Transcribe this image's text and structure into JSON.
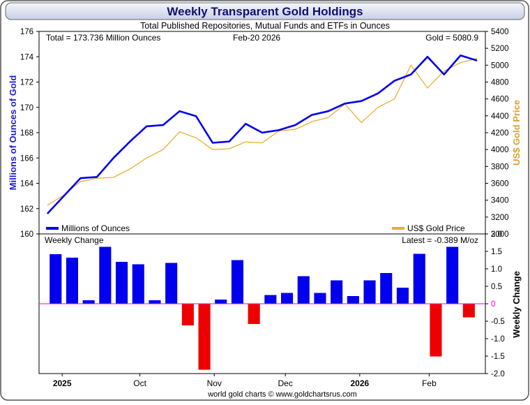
{
  "chart_data": [
    {
      "type": "line",
      "title": "Weekly Transparent Gold Holdings",
      "subtitle": "Total Published Repositories, Mutual Funds and ETFs in Ounces",
      "total_label": "Total = 173.736 Million Ounces",
      "date_label": "Feb-20  2026",
      "gold_label": "Gold = 5080.9",
      "ylabel": "Millions of Ounces of Gold",
      "y2label": "US$ Gold Price",
      "ylim": [
        160,
        176
      ],
      "y2lim": [
        3000,
        5400
      ],
      "yticks": [
        "160",
        "162",
        "164",
        "166",
        "168",
        "170",
        "172",
        "174",
        "176"
      ],
      "y2ticks": [
        "3000",
        "3200",
        "3400",
        "3600",
        "3800",
        "4000",
        "4200",
        "4400",
        "4600",
        "4800",
        "5000",
        "5200",
        "5400"
      ],
      "series": [
        {
          "name": "Millions of Ounces",
          "axis": "left",
          "color": "#0000ee",
          "values": [
            161.6,
            163.0,
            164.4,
            164.5,
            166.0,
            167.3,
            168.5,
            168.6,
            169.7,
            169.3,
            167.2,
            167.3,
            168.7,
            168.0,
            168.2,
            168.6,
            169.4,
            169.7,
            170.3,
            170.5,
            171.1,
            172.1,
            172.6,
            174.0,
            172.6,
            174.1,
            173.7
          ]
        },
        {
          "name": "US$ Gold Price",
          "axis": "right",
          "color": "#e8b030",
          "values": [
            3340,
            3460,
            3620,
            3660,
            3670,
            3770,
            3900,
            4000,
            4210,
            4140,
            4000,
            4010,
            4090,
            4080,
            4220,
            4240,
            4330,
            4380,
            4540,
            4320,
            4500,
            4600,
            5000,
            4730,
            4930,
            5030,
            5081
          ]
        }
      ],
      "legend": [
        "Millions of Ounces",
        "US$ Gold Price"
      ]
    },
    {
      "type": "bar",
      "title": "Weekly Change",
      "latest_label": "Latest = -0.389 M/oz",
      "ylabel": "Weekly Change",
      "ylim": [
        -2.0,
        2.0
      ],
      "yticks": [
        "-2.0",
        "-1.5",
        "-1.0",
        "-0.5",
        "0",
        "0.5",
        "1.0",
        "1.5",
        "2.0"
      ],
      "values": [
        1.42,
        1.32,
        0.1,
        1.63,
        1.2,
        1.13,
        0.1,
        1.17,
        -0.62,
        -1.89,
        0.12,
        1.25,
        -0.58,
        0.25,
        0.31,
        0.79,
        0.31,
        0.67,
        0.22,
        0.67,
        0.88,
        0.46,
        1.43,
        -1.51,
        1.63,
        -0.39
      ],
      "positive_color": "#0000ee",
      "negative_color": "#ee0000",
      "zero_line_color": "#ee00ee"
    }
  ],
  "x_axis": {
    "labels": [
      {
        "text": "2025",
        "week": 1.4,
        "major": true
      },
      {
        "text": "Oct",
        "week": 6.1,
        "major": false
      },
      {
        "text": "Nov",
        "week": 10.6,
        "major": false
      },
      {
        "text": "Dec",
        "week": 14.9,
        "major": false
      },
      {
        "text": "2026",
        "week": 19.4,
        "major": true
      },
      {
        "text": "Feb",
        "week": 23.6,
        "major": false
      }
    ],
    "week_count": 27
  },
  "footer": "world gold charts © www.goldchartsrus.com"
}
